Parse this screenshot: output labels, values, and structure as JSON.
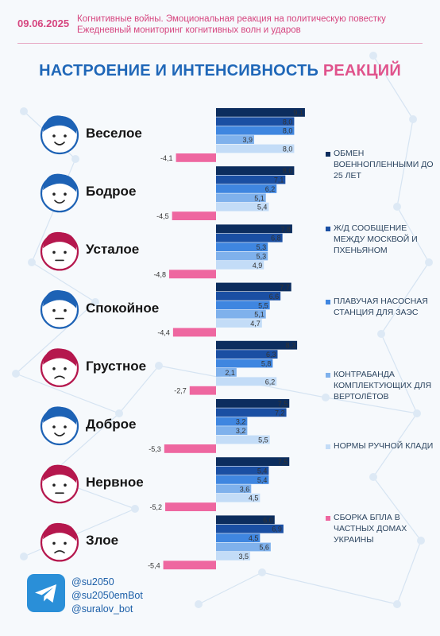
{
  "header": {
    "date": "09.06.2025",
    "line1": "Когнитивные войны. Эмоциональная реакция на политическую повестку",
    "line2": "Ежедневный мониторинг когнитивных волн и ударов"
  },
  "title": {
    "part1": "НАСТРОЕНИЕ И ИНТЕНСИВНОСТЬ ",
    "part2": "РЕАКЦИЙ"
  },
  "colors": {
    "accent_pink": "#e0538c",
    "accent_blue": "#1f67b8",
    "face_blue": "#1d62b5",
    "face_red": "#b5174d"
  },
  "chart_data": {
    "type": "bar",
    "orientation": "horizontal",
    "title": "НАСТРОЕНИЕ И ИНТЕНСИВНОСТЬ РЕАКЦИЙ",
    "categories": [
      "Веселое",
      "Бодрое",
      "Усталое",
      "Спокойное",
      "Грустное",
      "Доброе",
      "Нервное",
      "Злое"
    ],
    "face_colors": [
      "blue",
      "blue",
      "red",
      "blue",
      "red",
      "blue",
      "red",
      "red"
    ],
    "face_expressions": [
      "happy",
      "happy",
      "tired",
      "calm",
      "sad",
      "kind",
      "nervous",
      "angry"
    ],
    "series": [
      {
        "name": "ОБМЕН ВОЕННОПЛЕННЫМИ ДО 25 ЛЕТ",
        "color": "#0c2d5e",
        "values": [
          9.1,
          8.0,
          7.8,
          7.7,
          8.3,
          7.5,
          7.5,
          6.0
        ]
      },
      {
        "name": "Ж/Д СООБЩЕНИЕ МЕЖДУ МОСКВОЙ И ПХЕНЬЯНОМ",
        "color": "#1a4fa3",
        "values": [
          8.0,
          7.1,
          6.8,
          6.6,
          6.3,
          7.2,
          5.4,
          6.9
        ]
      },
      {
        "name": "ПЛАВУЧАЯ НАСОСНАЯ СТАНЦИЯ ДЛЯ ЗАЭС",
        "color": "#3f86e0",
        "values": [
          8.0,
          6.2,
          5.3,
          5.5,
          5.8,
          3.2,
          5.4,
          4.5
        ]
      },
      {
        "name": "КОНТРАБАНДА КОМПЛЕКТУЮЩИХ ДЛЯ ВЕРТОЛЁТОВ",
        "color": "#7fb1ec",
        "values": [
          3.9,
          5.1,
          5.3,
          5.1,
          2.1,
          3.2,
          3.6,
          5.6
        ]
      },
      {
        "name": "НОРМЫ РУЧНОЙ КЛАДИ",
        "color": "#c3dcf7",
        "values": [
          8.0,
          5.4,
          4.9,
          4.7,
          6.2,
          5.5,
          4.5,
          3.5
        ]
      },
      {
        "name": "СБОРКА БПЛА В ЧАСТНЫХ ДОМАХ УКРАИНЫ",
        "color": "#ee67a0",
        "values": [
          -4.1,
          -4.5,
          -4.8,
          -4.4,
          -2.7,
          -5.3,
          -5.2,
          -5.4
        ]
      }
    ]
  },
  "footer": {
    "handles": [
      "@su2050",
      "@su2050emBot",
      "@suralov_bot"
    ]
  }
}
